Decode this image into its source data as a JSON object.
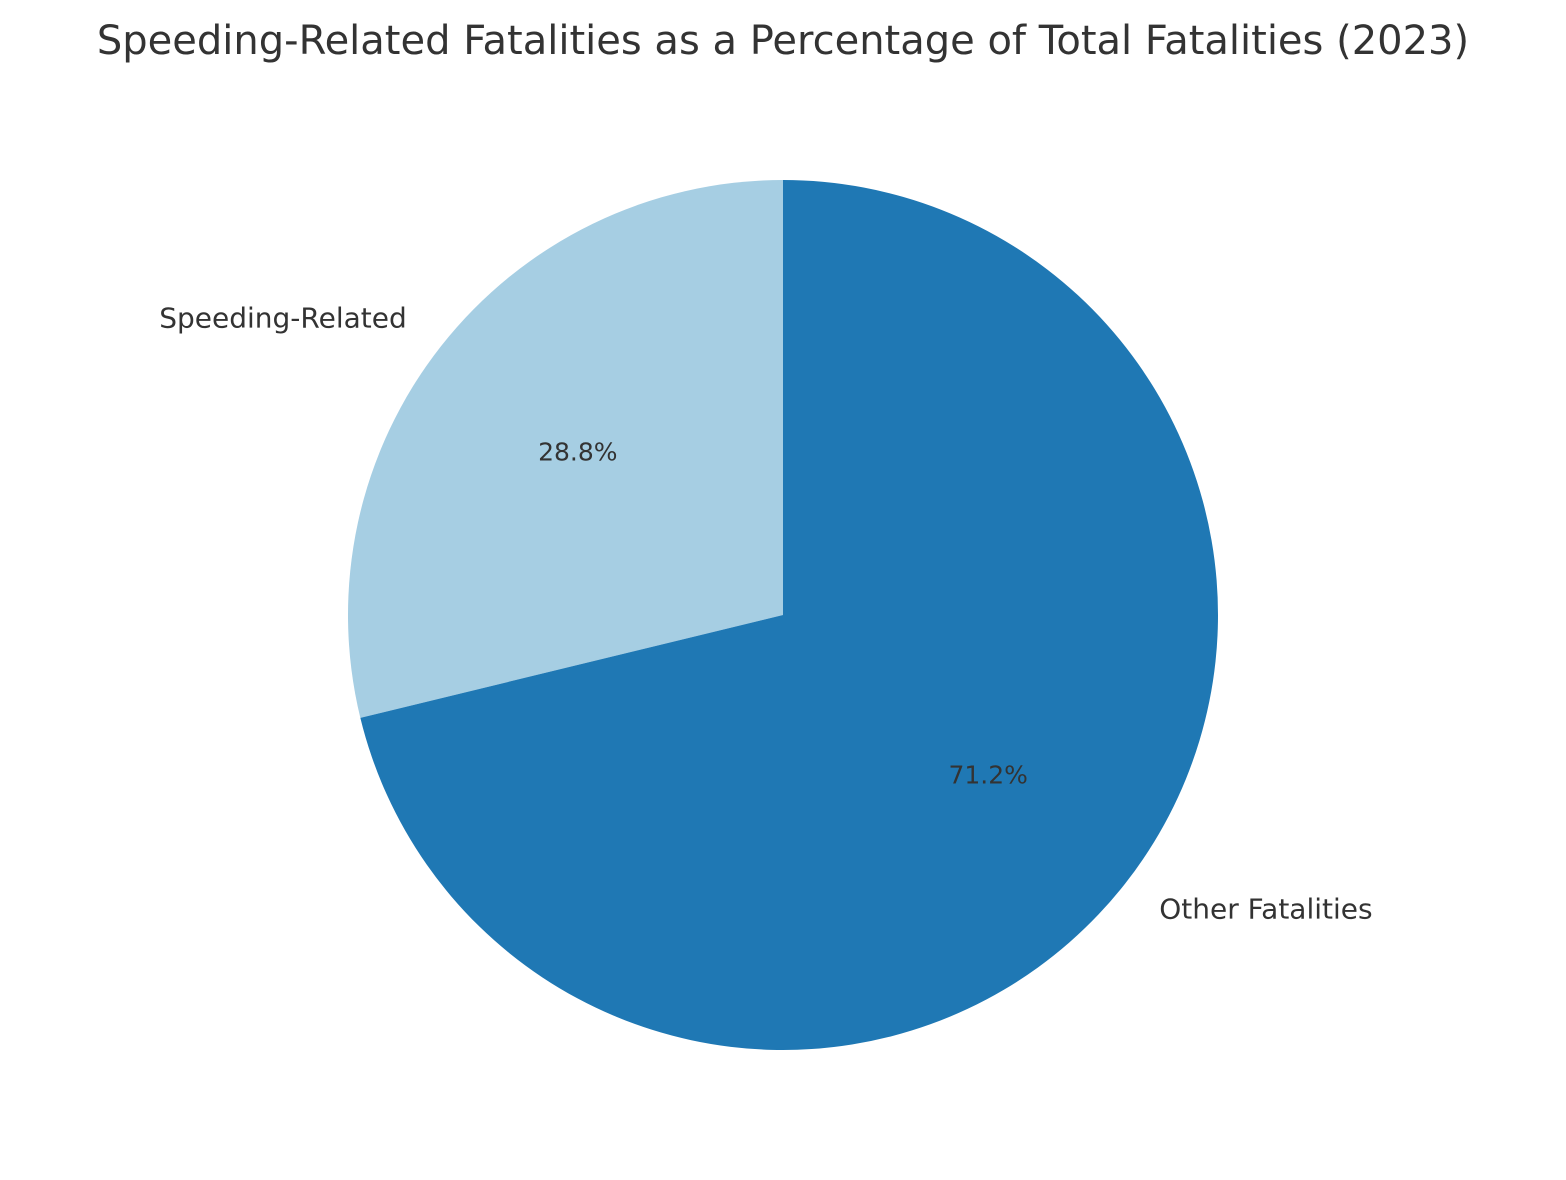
{
  "chart_data": {
    "type": "pie",
    "title": "Speeding-Related Fatalities as a Percentage of Total Fatalities (2023)",
    "categories": [
      "Speeding-Related",
      "Other Fatalities"
    ],
    "values": [
      28.8,
      71.2
    ],
    "data_labels": [
      "28.8%",
      "71.2%"
    ],
    "colors": [
      "#a6cee3",
      "#1f78b4"
    ],
    "start_angle_deg": 90,
    "direction": "counterclockwise",
    "legend": "none"
  }
}
